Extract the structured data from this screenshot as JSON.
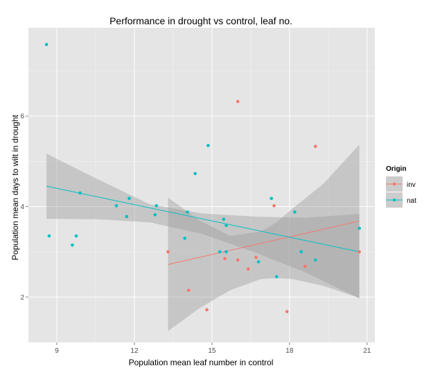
{
  "chart_data": {
    "type": "scatter",
    "title": "Performance in drought vs control, leaf no.",
    "xlabel": "Population mean leaf number in control",
    "ylabel": "Population mean days to wilt in drought",
    "xlim": [
      7.9,
      21.3
    ],
    "ylim": [
      1.0,
      7.95
    ],
    "xticks": [
      9,
      12,
      15,
      18,
      21
    ],
    "yticks": [
      2,
      4,
      6
    ],
    "grid": true,
    "legend": {
      "title": "Origin",
      "position": "right",
      "entries": [
        {
          "label": "inv",
          "color": "#F8766D"
        },
        {
          "label": "nat",
          "color": "#00BFC4"
        }
      ]
    },
    "series": [
      {
        "name": "inv",
        "color": "#F8766D",
        "points": [
          {
            "x": 13.3,
            "y": 3.0
          },
          {
            "x": 14.1,
            "y": 2.15
          },
          {
            "x": 14.8,
            "y": 1.72
          },
          {
            "x": 15.5,
            "y": 2.85
          },
          {
            "x": 16.0,
            "y": 2.82
          },
          {
            "x": 16.0,
            "y": 6.32
          },
          {
            "x": 16.4,
            "y": 2.62
          },
          {
            "x": 16.7,
            "y": 2.88
          },
          {
            "x": 17.4,
            "y": 4.02
          },
          {
            "x": 17.9,
            "y": 1.68
          },
          {
            "x": 18.6,
            "y": 2.68
          },
          {
            "x": 19.0,
            "y": 5.33
          },
          {
            "x": 20.7,
            "y": 3.0
          }
        ],
        "fit": {
          "x": [
            13.3,
            20.7
          ],
          "y": [
            2.72,
            3.68
          ]
        },
        "ci": {
          "x": [
            13.3,
            14.5,
            15.7,
            16.9,
            17.5,
            18.1,
            19.3,
            20.7
          ],
          "lower": [
            1.25,
            1.75,
            2.15,
            2.4,
            2.42,
            2.4,
            2.25,
            1.98
          ],
          "upper": [
            4.2,
            3.7,
            3.35,
            3.45,
            3.65,
            3.95,
            4.5,
            5.37
          ]
        }
      },
      {
        "name": "nat",
        "color": "#00BFC4",
        "points": [
          {
            "x": 8.6,
            "y": 7.58
          },
          {
            "x": 8.7,
            "y": 3.35
          },
          {
            "x": 9.6,
            "y": 3.15
          },
          {
            "x": 9.75,
            "y": 3.35
          },
          {
            "x": 9.9,
            "y": 4.3
          },
          {
            "x": 11.3,
            "y": 4.02
          },
          {
            "x": 11.7,
            "y": 3.78
          },
          {
            "x": 11.8,
            "y": 4.18
          },
          {
            "x": 12.8,
            "y": 3.82
          },
          {
            "x": 12.85,
            "y": 4.02
          },
          {
            "x": 13.95,
            "y": 3.3
          },
          {
            "x": 14.05,
            "y": 3.88
          },
          {
            "x": 14.35,
            "y": 4.73
          },
          {
            "x": 14.85,
            "y": 5.35
          },
          {
            "x": 15.3,
            "y": 3.0
          },
          {
            "x": 15.45,
            "y": 3.72
          },
          {
            "x": 15.55,
            "y": 3.58
          },
          {
            "x": 15.55,
            "y": 3.0
          },
          {
            "x": 16.8,
            "y": 2.78
          },
          {
            "x": 17.3,
            "y": 4.18
          },
          {
            "x": 17.5,
            "y": 2.45
          },
          {
            "x": 18.2,
            "y": 3.88
          },
          {
            "x": 18.45,
            "y": 3.0
          },
          {
            "x": 19.0,
            "y": 2.82
          },
          {
            "x": 20.7,
            "y": 3.52
          }
        ],
        "fit": {
          "x": [
            8.6,
            20.7
          ],
          "y": [
            4.45,
            3.0
          ]
        },
        "ci": {
          "x": [
            8.6,
            10.6,
            12.6,
            14.6,
            16.6,
            18.6,
            20.7
          ],
          "lower": [
            3.73,
            3.72,
            3.65,
            3.4,
            3.0,
            2.55,
            1.97
          ],
          "upper": [
            5.17,
            4.6,
            4.05,
            3.85,
            3.78,
            3.75,
            3.84
          ]
        }
      }
    ]
  }
}
